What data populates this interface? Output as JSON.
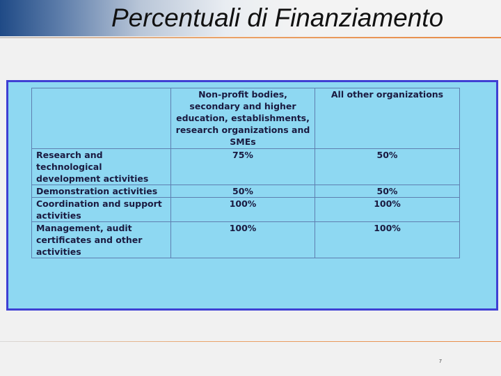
{
  "slide": {
    "title": "Percentuali di Finanziamento",
    "page_number": "7"
  },
  "table": {
    "headers": [
      "",
      "Non-profit bodies, secondary and higher education, establishments, research organizations and SMEs",
      "All other organizations"
    ],
    "rows": [
      {
        "activity": "Research and technological development activities",
        "non_profit": "75%",
        "other": "50%"
      },
      {
        "activity": "Demonstration activities",
        "non_profit": "50%",
        "other": "50%"
      },
      {
        "activity": "Coordination and support activities",
        "non_profit": "100%",
        "other": "100%"
      },
      {
        "activity": "Management, audit certificates and other activities",
        "non_profit": "100%",
        "other": "100%"
      }
    ]
  },
  "colors": {
    "panel_background": "#8ed8f2",
    "panel_border": "#3f3fd3",
    "accent_rule": "#e88a45",
    "header_gradient_start": "#1f4a86"
  }
}
